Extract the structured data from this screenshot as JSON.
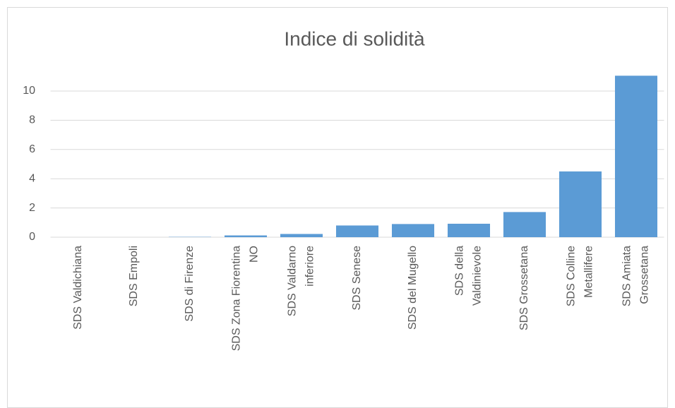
{
  "chart_data": {
    "type": "bar",
    "title": "Indice di solidità",
    "categories": [
      "SDS Valdichiana",
      "SDS Empoli",
      "SDS di Firenze",
      "SDS Zona Fiorentina NO",
      "SDS Valdarno inferiore",
      "SDS Senese",
      "SDS del Mugello",
      "SDS della Valdinievole",
      "SDS Grossetana",
      "SDS Colline Metallifere",
      "SDS Amiata Grossetana"
    ],
    "values": [
      0,
      0,
      0.02,
      0.12,
      0.22,
      0.8,
      0.9,
      0.92,
      1.72,
      4.5,
      11.05
    ],
    "color": "#5b9bd5",
    "ylim": [
      0,
      11.2
    ],
    "yticks": [
      0,
      2,
      4,
      6,
      8,
      10
    ],
    "grid": true
  }
}
